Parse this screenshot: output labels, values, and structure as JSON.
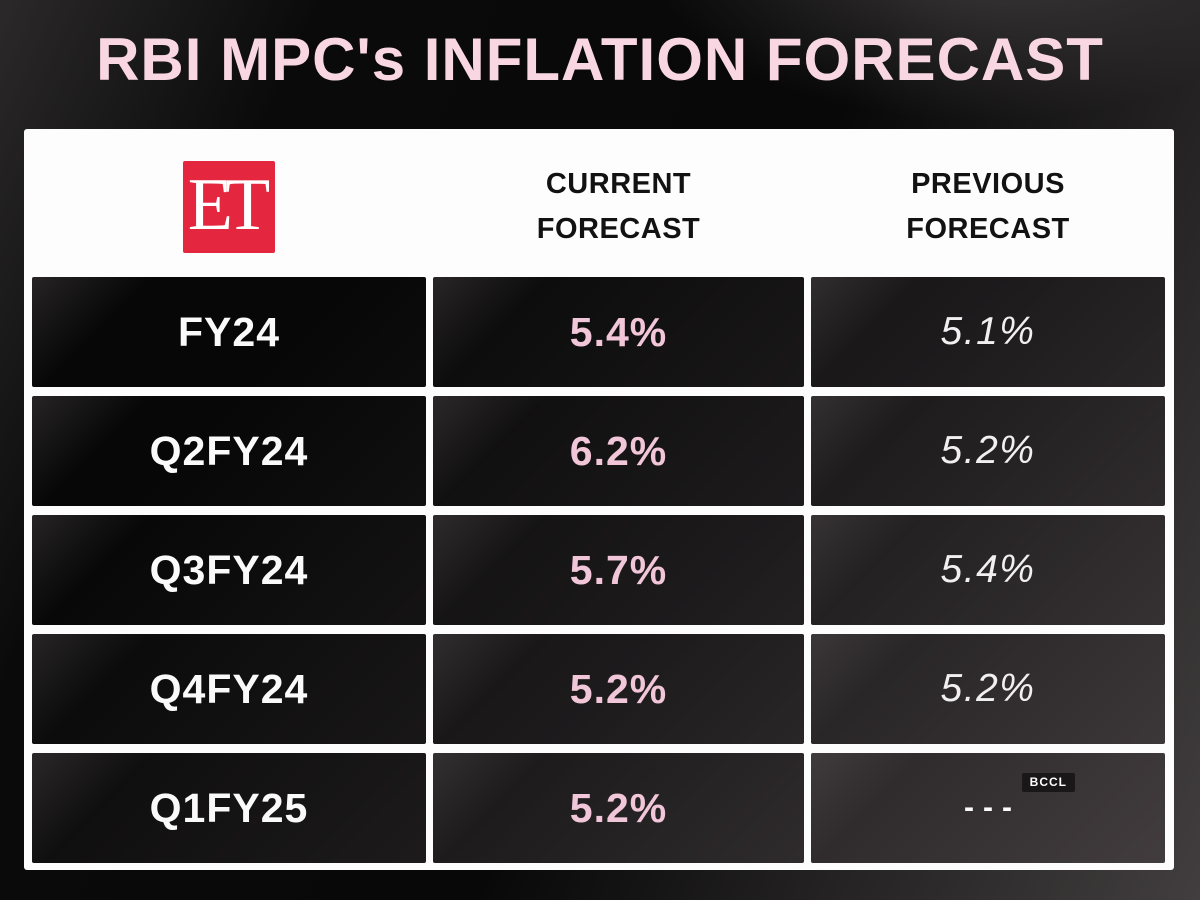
{
  "title": "RBI MPC's INFLATION FORECAST",
  "logo": {
    "text": "ET"
  },
  "watermark": "BCCL",
  "colors": {
    "title_pink": "#f8d6e2",
    "value_pink": "#f1c6d8",
    "logo_red": "#e5263f",
    "panel_white": "#fdfdfd",
    "cell_black": "#0a0a0a",
    "header_text": "#121212"
  },
  "table": {
    "columns": {
      "current": "CURRENT FORECAST",
      "previous": "PREVIOUS FORECAST"
    },
    "rows": [
      {
        "period": "FY24",
        "current": "5.4%",
        "previous": "5.1%"
      },
      {
        "period": "Q2FY24",
        "current": "6.2%",
        "previous": "5.2%"
      },
      {
        "period": "Q3FY24",
        "current": "5.7%",
        "previous": "5.4%"
      },
      {
        "period": "Q4FY24",
        "current": "5.2%",
        "previous": "5.2%"
      },
      {
        "period": "Q1FY25",
        "current": "5.2%",
        "previous": "---"
      }
    ]
  },
  "chart_data": {
    "type": "table",
    "title": "RBI MPC's INFLATION FORECAST",
    "columns": [
      "",
      "CURRENT FORECAST",
      "PREVIOUS FORECAST"
    ],
    "rows": [
      [
        "FY24",
        "5.4%",
        "5.1%"
      ],
      [
        "Q2FY24",
        "6.2%",
        "5.2%"
      ],
      [
        "Q3FY24",
        "5.7%",
        "5.4%"
      ],
      [
        "Q4FY24",
        "5.2%",
        "5.2%"
      ],
      [
        "Q1FY25",
        "5.2%",
        "---"
      ]
    ],
    "values_numeric": {
      "categories": [
        "FY24",
        "Q2FY24",
        "Q3FY24",
        "Q4FY24",
        "Q1FY25"
      ],
      "series": [
        {
          "name": "CURRENT FORECAST",
          "values": [
            5.4,
            6.2,
            5.7,
            5.2,
            5.2
          ]
        },
        {
          "name": "PREVIOUS FORECAST",
          "values": [
            5.1,
            5.2,
            5.4,
            5.2,
            null
          ]
        }
      ],
      "unit": "%"
    }
  }
}
